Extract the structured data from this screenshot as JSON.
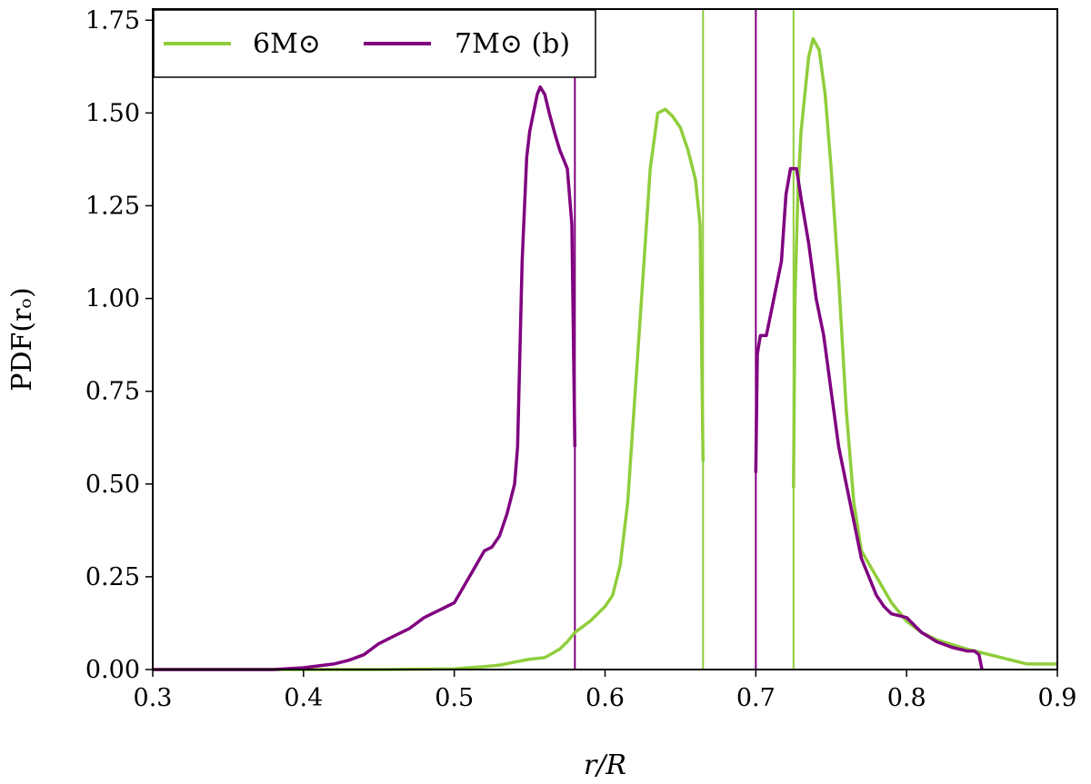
{
  "chart_data": {
    "type": "line",
    "xlabel": "r/R",
    "ylabel": "PDF(rₒ)",
    "xlim": [
      0.3,
      0.9
    ],
    "ylim": [
      0.0,
      1.78
    ],
    "x_ticks": [
      "0.3",
      "0.4",
      "0.5",
      "0.6",
      "0.7",
      "0.8",
      "0.9"
    ],
    "y_ticks": [
      "0.00",
      "0.25",
      "0.50",
      "0.75",
      "1.00",
      "1.25",
      "1.50",
      "1.75"
    ],
    "legend": {
      "placement": "top-left",
      "entries": [
        "6M⊙",
        "7M⊙ (b)"
      ]
    },
    "series": [
      {
        "name": "6M⊙",
        "color": "#8fce3b",
        "segments": [
          [
            [
              0.3,
              0.0
            ],
            [
              0.45,
              0.0
            ],
            [
              0.5,
              0.002
            ],
            [
              0.52,
              0.008
            ],
            [
              0.53,
              0.012
            ],
            [
              0.54,
              0.02
            ],
            [
              0.55,
              0.028
            ],
            [
              0.56,
              0.032
            ],
            [
              0.57,
              0.055
            ],
            [
              0.575,
              0.075
            ],
            [
              0.58,
              0.1
            ],
            [
              0.59,
              0.13
            ],
            [
              0.6,
              0.17
            ],
            [
              0.605,
              0.2
            ],
            [
              0.61,
              0.28
            ],
            [
              0.615,
              0.45
            ],
            [
              0.62,
              0.75
            ],
            [
              0.625,
              1.05
            ],
            [
              0.63,
              1.35
            ],
            [
              0.635,
              1.5
            ],
            [
              0.64,
              1.51
            ],
            [
              0.645,
              1.49
            ],
            [
              0.65,
              1.46
            ],
            [
              0.655,
              1.4
            ],
            [
              0.66,
              1.32
            ],
            [
              0.663,
              1.2
            ],
            [
              0.665,
              0.56
            ]
          ],
          [
            [
              0.725,
              0.49
            ],
            [
              0.726,
              1.0
            ],
            [
              0.728,
              1.3
            ],
            [
              0.73,
              1.45
            ],
            [
              0.735,
              1.65
            ],
            [
              0.738,
              1.7
            ],
            [
              0.742,
              1.67
            ],
            [
              0.746,
              1.55
            ],
            [
              0.75,
              1.35
            ],
            [
              0.755,
              1.05
            ],
            [
              0.76,
              0.7
            ],
            [
              0.765,
              0.45
            ],
            [
              0.77,
              0.32
            ],
            [
              0.78,
              0.25
            ],
            [
              0.79,
              0.18
            ],
            [
              0.8,
              0.13
            ],
            [
              0.81,
              0.1
            ],
            [
              0.82,
              0.08
            ],
            [
              0.84,
              0.055
            ],
            [
              0.86,
              0.035
            ],
            [
              0.87,
              0.025
            ],
            [
              0.88,
              0.015
            ],
            [
              0.89,
              0.015
            ],
            [
              0.9,
              0.015
            ]
          ]
        ]
      },
      {
        "name": "7M⊙ (b)",
        "color": "#800080",
        "segments": [
          [
            [
              0.3,
              0.0
            ],
            [
              0.38,
              0.0
            ],
            [
              0.4,
              0.005
            ],
            [
              0.42,
              0.015
            ],
            [
              0.43,
              0.025
            ],
            [
              0.44,
              0.04
            ],
            [
              0.45,
              0.07
            ],
            [
              0.46,
              0.09
            ],
            [
              0.47,
              0.11
            ],
            [
              0.48,
              0.14
            ],
            [
              0.49,
              0.16
            ],
            [
              0.5,
              0.18
            ],
            [
              0.51,
              0.25
            ],
            [
              0.52,
              0.32
            ],
            [
              0.525,
              0.33
            ],
            [
              0.53,
              0.36
            ],
            [
              0.535,
              0.42
            ],
            [
              0.54,
              0.5
            ],
            [
              0.542,
              0.6
            ],
            [
              0.545,
              1.1
            ],
            [
              0.548,
              1.38
            ],
            [
              0.55,
              1.45
            ],
            [
              0.555,
              1.55
            ],
            [
              0.557,
              1.57
            ],
            [
              0.56,
              1.55
            ],
            [
              0.563,
              1.5
            ],
            [
              0.567,
              1.44
            ],
            [
              0.57,
              1.4
            ],
            [
              0.575,
              1.35
            ],
            [
              0.578,
              1.2
            ],
            [
              0.58,
              0.6
            ]
          ],
          [
            [
              0.7,
              0.53
            ],
            [
              0.701,
              0.85
            ],
            [
              0.703,
              0.9
            ],
            [
              0.707,
              0.9
            ],
            [
              0.712,
              1.0
            ],
            [
              0.717,
              1.1
            ],
            [
              0.72,
              1.28
            ],
            [
              0.723,
              1.35
            ],
            [
              0.727,
              1.35
            ],
            [
              0.73,
              1.27
            ],
            [
              0.735,
              1.15
            ],
            [
              0.74,
              1.0
            ],
            [
              0.745,
              0.9
            ],
            [
              0.75,
              0.75
            ],
            [
              0.755,
              0.6
            ],
            [
              0.76,
              0.5
            ],
            [
              0.765,
              0.4
            ],
            [
              0.77,
              0.3
            ],
            [
              0.775,
              0.25
            ],
            [
              0.78,
              0.2
            ],
            [
              0.785,
              0.17
            ],
            [
              0.79,
              0.15
            ],
            [
              0.8,
              0.14
            ],
            [
              0.81,
              0.1
            ],
            [
              0.82,
              0.075
            ],
            [
              0.83,
              0.06
            ],
            [
              0.84,
              0.05
            ],
            [
              0.845,
              0.05
            ],
            [
              0.848,
              0.04
            ],
            [
              0.85,
              0.0
            ]
          ]
        ]
      }
    ],
    "vertical_lines": [
      {
        "x": 0.58,
        "color": "#800080"
      },
      {
        "x": 0.665,
        "color": "#8fce3b"
      },
      {
        "x": 0.7,
        "color": "#800080"
      },
      {
        "x": 0.725,
        "color": "#8fce3b"
      }
    ]
  }
}
